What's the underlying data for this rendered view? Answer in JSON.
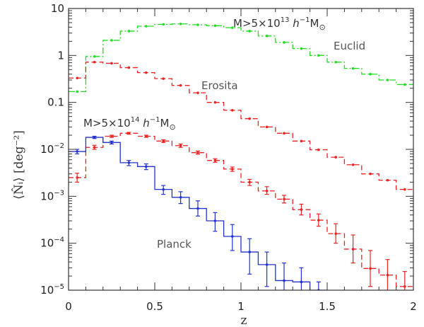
{
  "chart_data": {
    "type": "line",
    "title": "",
    "xlabel": "z",
    "ylabel": "⟨N̂ᵢ⟩ [deg⁻²]",
    "xlim": [
      0,
      2
    ],
    "ylim": [
      1e-05,
      10
    ],
    "yscale": "log",
    "x_ticks": [
      0,
      0.5,
      1,
      1.5,
      2
    ],
    "x_tick_labels": [
      "0",
      "0.5",
      "1",
      "1.5",
      "2"
    ],
    "y_tick_labels": [
      {
        "value": 10,
        "base": "10",
        "exp": ""
      },
      {
        "value": 1,
        "base": "1",
        "exp": ""
      },
      {
        "value": 0.1,
        "base": "0.1",
        "exp": ""
      },
      {
        "value": 0.01,
        "base": "10",
        "exp": "−2"
      },
      {
        "value": 0.001,
        "base": "10",
        "exp": "−3"
      },
      {
        "value": 0.0001,
        "base": "10",
        "exp": "−4"
      },
      {
        "value": 1e-05,
        "base": "10",
        "exp": "−5"
      }
    ],
    "annotations": {
      "euclid": "Euclid",
      "erosita": "Erosita",
      "planck": "Planck",
      "mass_high": {
        "prefix": "M>5×10",
        "exp": "13",
        "mid": " h",
        "unit_exp": "−1",
        "unit": "M",
        "sub": "⊙"
      },
      "mass_low": {
        "prefix": "M>5×10",
        "exp": "14",
        "mid": " h",
        "unit_exp": "−1",
        "unit": "M",
        "sub": "⊙"
      }
    },
    "series": [
      {
        "name": "Euclid (M>5×10^13)",
        "color": "#22dd22",
        "dash": "9,3,2,3",
        "bin_width": 0.1,
        "x": [
          0.05,
          0.15,
          0.25,
          0.35,
          0.45,
          0.55,
          0.65,
          0.75,
          0.85,
          0.95,
          1.05,
          1.15,
          1.25,
          1.35,
          1.45,
          1.55,
          1.65,
          1.75,
          1.85,
          1.95
        ],
        "values": [
          0.17,
          0.95,
          2.1,
          3.3,
          4.2,
          4.6,
          4.7,
          4.5,
          4.3,
          3.9,
          3.3,
          2.6,
          1.9,
          1.4,
          1.0,
          0.72,
          0.53,
          0.4,
          0.3,
          0.24
        ]
      },
      {
        "name": "Erosita (M>5×10^13)",
        "color": "#ee2222",
        "dash": "7,4",
        "bin_width": 0.1,
        "x": [
          0.05,
          0.15,
          0.25,
          0.35,
          0.45,
          0.55,
          0.65,
          0.75,
          0.85,
          0.95,
          1.05,
          1.15,
          1.25,
          1.35,
          1.45,
          1.55,
          1.65,
          1.75,
          1.85,
          1.95
        ],
        "values": [
          0.33,
          0.72,
          0.68,
          0.55,
          0.43,
          0.32,
          0.23,
          0.16,
          0.1,
          0.068,
          0.045,
          0.03,
          0.022,
          0.015,
          0.0098,
          0.0068,
          0.0047,
          0.003,
          0.0022,
          0.0014
        ]
      },
      {
        "name": "Erosita (M>5×10^14)",
        "color": "#ee2222",
        "dash": "7,4",
        "bin_width": 0.1,
        "x": [
          0.05,
          0.15,
          0.25,
          0.35,
          0.45,
          0.55,
          0.65,
          0.75,
          0.85,
          0.95,
          1.05,
          1.15,
          1.25,
          1.35,
          1.45,
          1.55,
          1.65,
          1.75,
          1.85,
          1.95
        ],
        "values": [
          0.0025,
          0.011,
          0.019,
          0.022,
          0.019,
          0.015,
          0.012,
          0.0085,
          0.0058,
          0.0038,
          0.002,
          0.0013,
          0.00087,
          0.00052,
          0.00031,
          0.00016,
          7.5e-05,
          2.9e-05,
          2.1e-05,
          1.2e-05
        ],
        "err_lo": [
          0.002,
          0.01,
          0.018,
          0.021,
          0.018,
          0.014,
          0.011,
          0.0079,
          0.0053,
          0.0034,
          0.0017,
          0.0011,
          0.00072,
          0.0004,
          0.00023,
          0.0001,
          3.8e-05,
          1.2e-05,
          1e-05,
          7e-06
        ],
        "err_hi": [
          0.0031,
          0.0122,
          0.02,
          0.023,
          0.02,
          0.016,
          0.013,
          0.0092,
          0.0063,
          0.0042,
          0.0023,
          0.0016,
          0.00105,
          0.00068,
          0.00042,
          0.00026,
          0.00015,
          7e-05,
          4.5e-05,
          2.5e-05
        ]
      },
      {
        "name": "Planck (M>5×10^14)",
        "color": "#2233cc",
        "dash": "",
        "bin_width": 0.1,
        "x": [
          0.05,
          0.15,
          0.25,
          0.35,
          0.45,
          0.55,
          0.65,
          0.75,
          0.85,
          0.95,
          1.05,
          1.15,
          1.25,
          1.35,
          1.45
        ],
        "values": [
          0.009,
          0.018,
          0.014,
          0.0052,
          0.0043,
          0.0014,
          0.00095,
          0.00055,
          0.0003,
          0.00014,
          6.5e-05,
          3.5e-05,
          1.6e-05,
          1.5e-05,
          1e-05
        ],
        "err_lo": [
          0.008,
          0.017,
          0.013,
          0.0045,
          0.0037,
          0.0011,
          0.0007,
          0.00038,
          0.00018,
          7e-05,
          2.2e-05,
          1.2e-05,
          1e-05,
          1e-05,
          1e-05
        ],
        "err_hi": [
          0.01,
          0.019,
          0.015,
          0.0058,
          0.0049,
          0.0017,
          0.00125,
          0.0008,
          0.00045,
          0.00025,
          0.000125,
          6.5e-05,
          3.8e-05,
          3e-05,
          1.5e-05
        ]
      }
    ]
  }
}
